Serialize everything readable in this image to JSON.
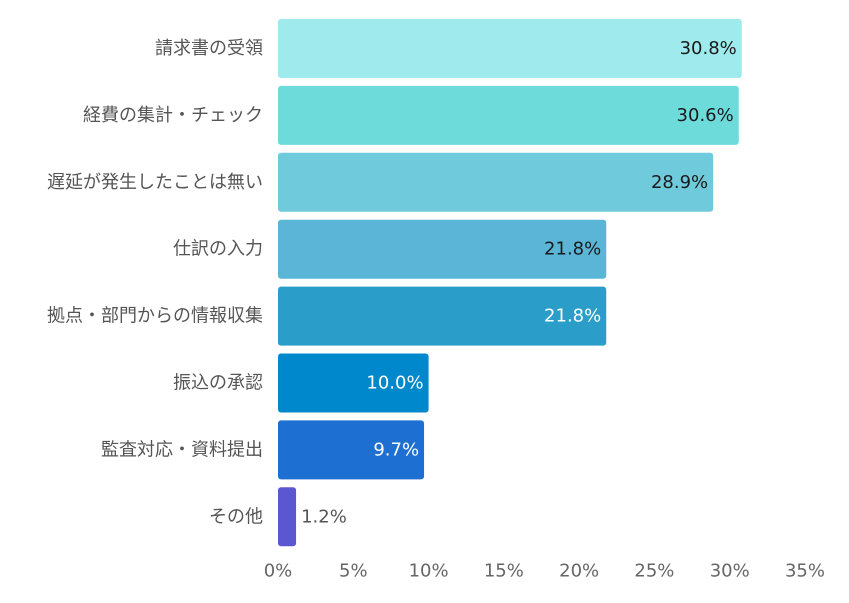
{
  "chart_data": {
    "type": "bar",
    "orientation": "horizontal",
    "title": "",
    "xlabel": "",
    "ylabel": "",
    "xlim": [
      0,
      35
    ],
    "ticks": [
      {
        "value": 0,
        "label": "0%"
      },
      {
        "value": 5,
        "label": "5%"
      },
      {
        "value": 10,
        "label": "10%"
      },
      {
        "value": 15,
        "label": "15%"
      },
      {
        "value": 20,
        "label": "20%"
      },
      {
        "value": 25,
        "label": "25%"
      },
      {
        "value": 30,
        "label": "30%"
      },
      {
        "value": 35,
        "label": "35%"
      }
    ],
    "grid": false,
    "bars": [
      {
        "category": "請求書の受領",
        "value": 30.8,
        "label": "30.8%",
        "color": "#9EEAEC",
        "label_color": "#1a1a1a",
        "label_inside": true
      },
      {
        "category": "経費の集計・チェック",
        "value": 30.6,
        "label": "30.6%",
        "color": "#6EDBDB",
        "label_color": "#1a1a1a",
        "label_inside": true
      },
      {
        "category": "遅延が発生したことは無い",
        "value": 28.9,
        "label": "28.9%",
        "color": "#6FCBDB",
        "label_color": "#1a1a1a",
        "label_inside": true
      },
      {
        "category": "仕訳の入力",
        "value": 21.8,
        "label": "21.8%",
        "color": "#5BB5D6",
        "label_color": "#1a1a1a",
        "label_inside": true
      },
      {
        "category": "拠点・部門からの情報収集",
        "value": 21.8,
        "label": "21.8%",
        "color": "#2A9EC9",
        "label_color": "#ffffff",
        "label_inside": true
      },
      {
        "category": "振込の承認",
        "value": 10.0,
        "label": "10.0%",
        "color": "#0088CC",
        "label_color": "#ffffff",
        "label_inside": true
      },
      {
        "category": "監査対応・資料提出",
        "value": 9.7,
        "label": "9.7%",
        "color": "#1E6FD2",
        "label_color": "#ffffff",
        "label_inside": true
      },
      {
        "category": "その他",
        "value": 1.2,
        "label": "1.2%",
        "color": "#5B57D1",
        "label_color": "#555555",
        "label_inside": false
      }
    ]
  }
}
